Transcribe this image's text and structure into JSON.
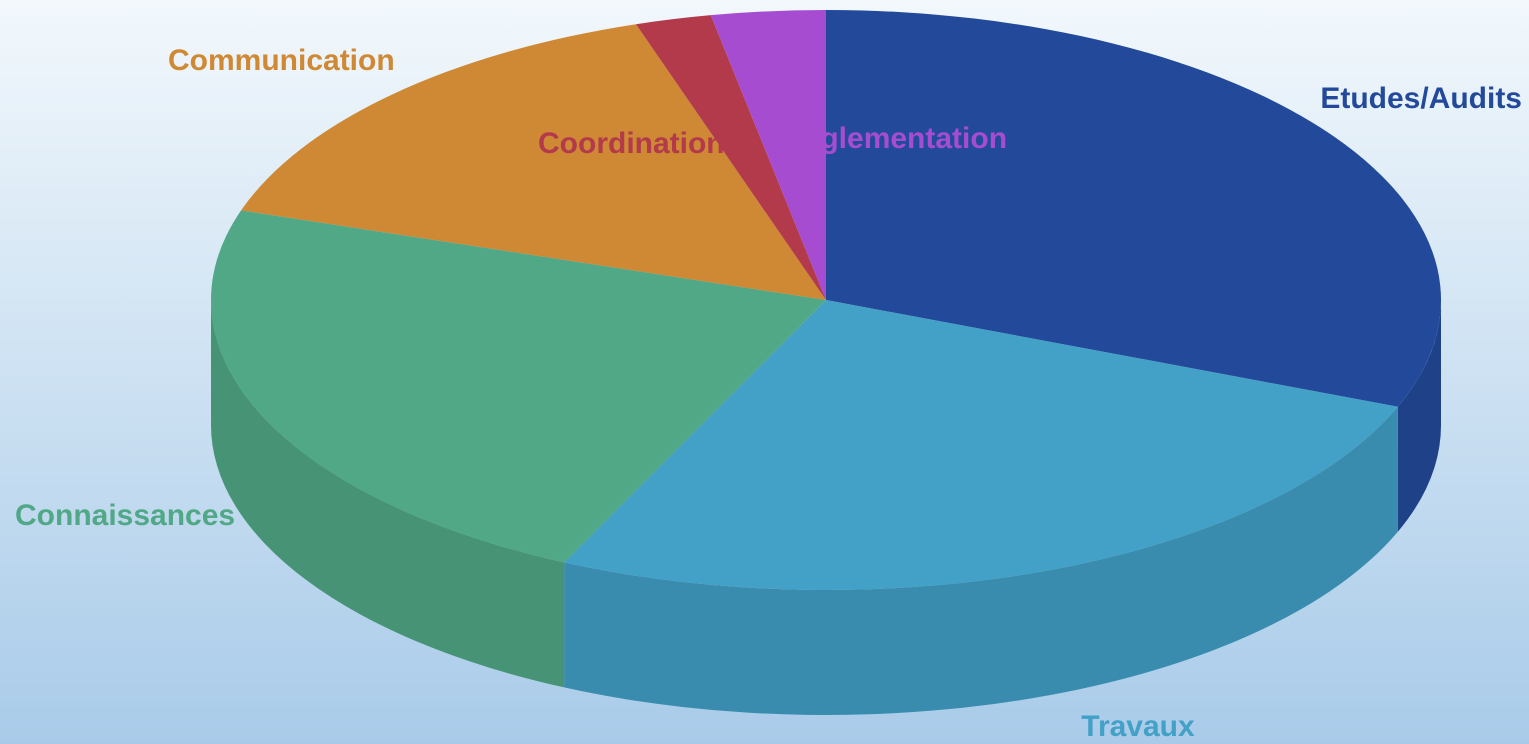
{
  "chart_data": {
    "type": "pie3d",
    "categories": [
      "Etudes/Audits",
      "Travaux",
      "Connaissances",
      "Communication",
      "Coordination",
      "Réglementation"
    ],
    "values": [
      31,
      26,
      23,
      15,
      2,
      3
    ],
    "colors": [
      "#234a9a",
      "#43a0c6",
      "#50a886",
      "#cf8834",
      "#b23a4b",
      "#a64cd1"
    ]
  }
}
